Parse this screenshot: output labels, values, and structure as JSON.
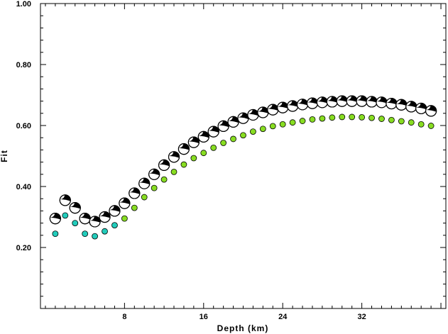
{
  "chart_data": {
    "type": "scatter",
    "title": "",
    "xlabel": "Depth (km)",
    "ylabel": "Fit",
    "xlim": [
      -0.5,
      40.5
    ],
    "ylim": [
      0.0,
      1.0
    ],
    "x_ticks": [
      "8",
      "16",
      "24",
      "32"
    ],
    "y_ticks": [
      "0.20",
      "0.40",
      "0.60",
      "0.80",
      "1.00"
    ],
    "grid": false,
    "series": [
      {
        "marker": "focal-mechanism-beachball",
        "colors": [
          "#000000",
          "#ffffff"
        ],
        "x": [
          1,
          2,
          3,
          4,
          5,
          6,
          7,
          8,
          9,
          10,
          11,
          12,
          13,
          14,
          15,
          16,
          17,
          18,
          19,
          20,
          21,
          22,
          23,
          24,
          25,
          26,
          27,
          28,
          29,
          30,
          31,
          32,
          33,
          34,
          35,
          36,
          37,
          38,
          39
        ],
        "y": [
          0.295,
          0.355,
          0.33,
          0.295,
          0.285,
          0.3,
          0.32,
          0.345,
          0.378,
          0.41,
          0.44,
          0.47,
          0.497,
          0.523,
          0.545,
          0.563,
          0.58,
          0.598,
          0.612,
          0.624,
          0.635,
          0.643,
          0.652,
          0.659,
          0.664,
          0.669,
          0.673,
          0.676,
          0.678,
          0.68,
          0.68,
          0.68,
          0.678,
          0.676,
          0.672,
          0.668,
          0.662,
          0.656,
          0.648
        ]
      },
      {
        "marker": "circle",
        "colors": [
          "#22ccbb",
          "#88dd22"
        ],
        "x": [
          1,
          2,
          3,
          4,
          5,
          6,
          7,
          8,
          9,
          10,
          11,
          12,
          13,
          14,
          15,
          16,
          17,
          18,
          19,
          20,
          21,
          22,
          23,
          24,
          25,
          26,
          27,
          28,
          29,
          30,
          31,
          32,
          33,
          34,
          35,
          36,
          37,
          38,
          39
        ],
        "y": [
          0.245,
          0.305,
          0.28,
          0.245,
          0.237,
          0.253,
          0.273,
          0.295,
          0.33,
          0.365,
          0.395,
          0.423,
          0.448,
          0.472,
          0.493,
          0.51,
          0.527,
          0.543,
          0.556,
          0.568,
          0.58,
          0.589,
          0.598,
          0.604,
          0.61,
          0.615,
          0.62,
          0.623,
          0.626,
          0.628,
          0.628,
          0.627,
          0.625,
          0.622,
          0.618,
          0.614,
          0.61,
          0.604,
          0.599
        ]
      }
    ]
  }
}
